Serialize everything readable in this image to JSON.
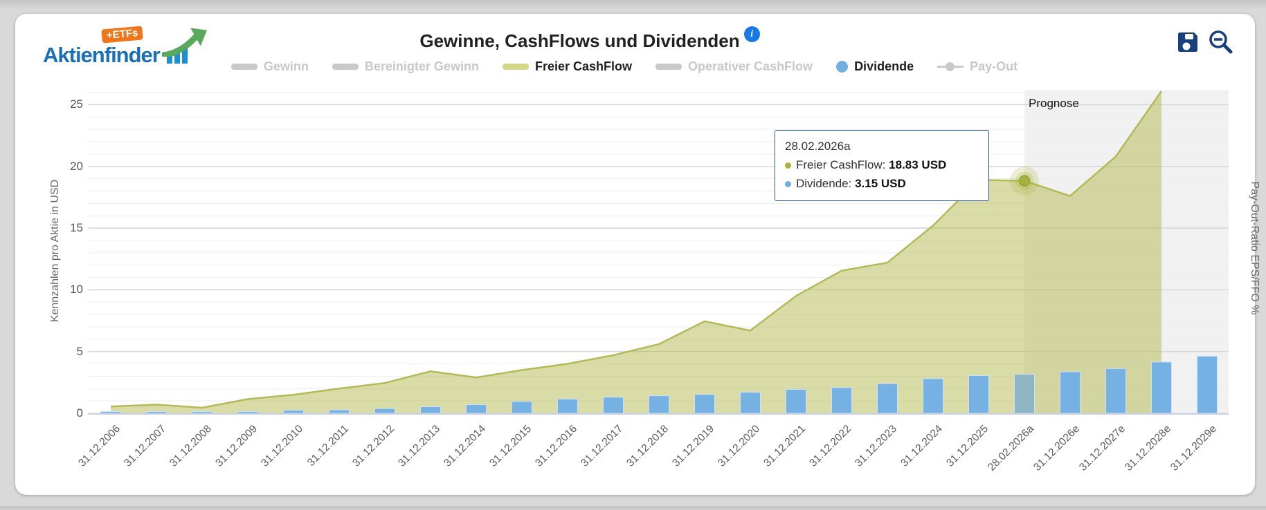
{
  "header": {
    "logo_text": "Aktienfinder",
    "logo_badge": "+ETFs",
    "title": "Gewinne, CashFlows und Dividenden",
    "info_icon": "i",
    "icons": {
      "save": "save-icon",
      "zoom_out": "zoom-out-icon"
    }
  },
  "legend": {
    "items": [
      {
        "label": "Gewinn",
        "active": false,
        "swatch": "bar",
        "color": "#c9c9c9"
      },
      {
        "label": "Bereinigter Gewinn",
        "active": false,
        "swatch": "bar",
        "color": "#c9c9c9"
      },
      {
        "label": "Freier CashFlow",
        "active": true,
        "swatch": "bar",
        "color": "#d3d786"
      },
      {
        "label": "Operativer CashFlow",
        "active": false,
        "swatch": "bar",
        "color": "#c9c9c9"
      },
      {
        "label": "Dividende",
        "active": true,
        "swatch": "circle",
        "color": "#73b0e2"
      },
      {
        "label": "Pay-Out",
        "active": false,
        "swatch": "linedot",
        "color": "#c9c9c9"
      }
    ]
  },
  "tooltip": {
    "date": "28.02.2026a",
    "rows": [
      {
        "label": "Freier CashFlow:",
        "value": "18.83 USD",
        "color": "#a9b43c"
      },
      {
        "label": "Dividende:",
        "value": "3.15 USD",
        "color": "#73aee1"
      }
    ]
  },
  "chart_data": {
    "type": "mixed",
    "title": "Gewinne, CashFlows und Dividenden",
    "ylabel": "Kennzahlen pro Aktie in USD",
    "ylabel_right": "Pay-Out-Ratio EPS/FFO %",
    "yticks": [
      0,
      5,
      10,
      15,
      20,
      25
    ],
    "ylim": [
      0,
      26.2
    ],
    "grid": "horizontal, minor every 1, major every 5",
    "legend_position": "top",
    "categories": [
      "31.12.2006",
      "31.12.2007",
      "31.12.2008",
      "31.12.2009",
      "31.12.2010",
      "31.12.2011",
      "31.12.2012",
      "31.12.2013",
      "31.12.2014",
      "31.12.2015",
      "31.12.2016",
      "31.12.2017",
      "31.12.2018",
      "31.12.2019",
      "31.12.2020",
      "31.12.2021",
      "31.12.2022",
      "31.12.2023",
      "31.12.2024",
      "31.12.2025",
      "28.02.2026a",
      "31.12.2026e",
      "31.12.2027e",
      "31.12.2028e",
      "31.12.2029e"
    ],
    "series": [
      {
        "name": "Freier CashFlow",
        "type": "area",
        "line_color": "#b2ba55",
        "fill_color": "rgba(180,186,80,0.5)",
        "values": [
          0.55,
          0.7,
          0.45,
          1.15,
          1.5,
          2.0,
          2.45,
          3.4,
          2.9,
          3.5,
          4.0,
          4.7,
          5.6,
          7.45,
          6.7,
          9.5,
          11.55,
          12.2,
          15.2,
          18.9,
          18.83,
          17.6,
          20.8,
          26.1,
          null
        ]
      },
      {
        "name": "Dividende",
        "type": "bar",
        "color": "#75b1e3",
        "muted_color": "#8db5c4",
        "values": [
          0.06,
          0.06,
          0.05,
          0.08,
          0.24,
          0.27,
          0.38,
          0.53,
          0.7,
          0.95,
          1.15,
          1.3,
          1.42,
          1.52,
          1.7,
          1.93,
          2.08,
          2.4,
          2.8,
          3.05,
          3.15,
          3.35,
          3.62,
          4.15,
          4.62
        ]
      }
    ],
    "prognose": {
      "label": "Prognose",
      "start_category": "28.02.2026a"
    },
    "highlight": {
      "category": "28.02.2026a",
      "series": "Freier CashFlow",
      "value": 18.83,
      "marker_color": "#a6b13e"
    }
  }
}
